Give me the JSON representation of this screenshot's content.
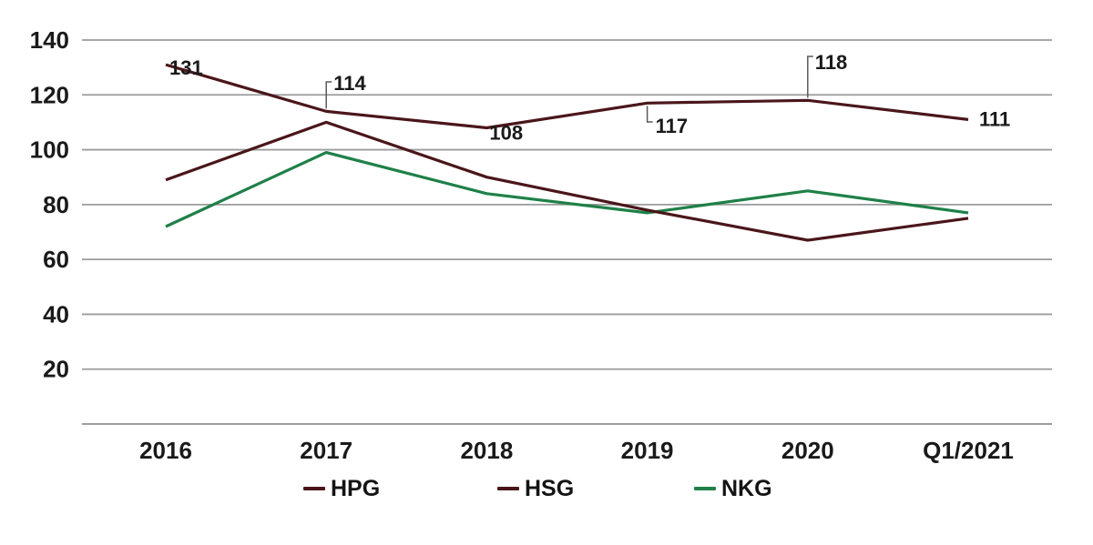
{
  "chart_data": {
    "type": "line",
    "title": "",
    "xlabel": "",
    "ylabel": "",
    "background": "#ffffff",
    "grid": true,
    "gridline_color": "#9b9b9b",
    "axis_line_color": "#8f8f8f",
    "axis_text_color": "#1a1a1a",
    "data_label_color": "#141414",
    "leader_line_color": "#5a5a5a",
    "legend_position": "bottom",
    "categories": [
      "2016",
      "2017",
      "2018",
      "2019",
      "2020",
      "Q1/2021"
    ],
    "y_axis": {
      "ticks": [
        140,
        120,
        100,
        80,
        60,
        40,
        20
      ],
      "min": 0,
      "max": 140
    },
    "series": [
      {
        "name": "HPG",
        "color": "#4a161a",
        "values": [
          131,
          114,
          108,
          117,
          118,
          111
        ],
        "data_labels": [
          "131",
          "114",
          "108",
          "117",
          "118",
          "111"
        ]
      },
      {
        "name": "HSG",
        "color": "#4a161a",
        "values": [
          89,
          110,
          90,
          78,
          67,
          75
        ],
        "data_labels": []
      },
      {
        "name": "NKG",
        "color": "#1f8048",
        "values": [
          72,
          99,
          84,
          77,
          85,
          77
        ],
        "data_labels": []
      }
    ]
  }
}
